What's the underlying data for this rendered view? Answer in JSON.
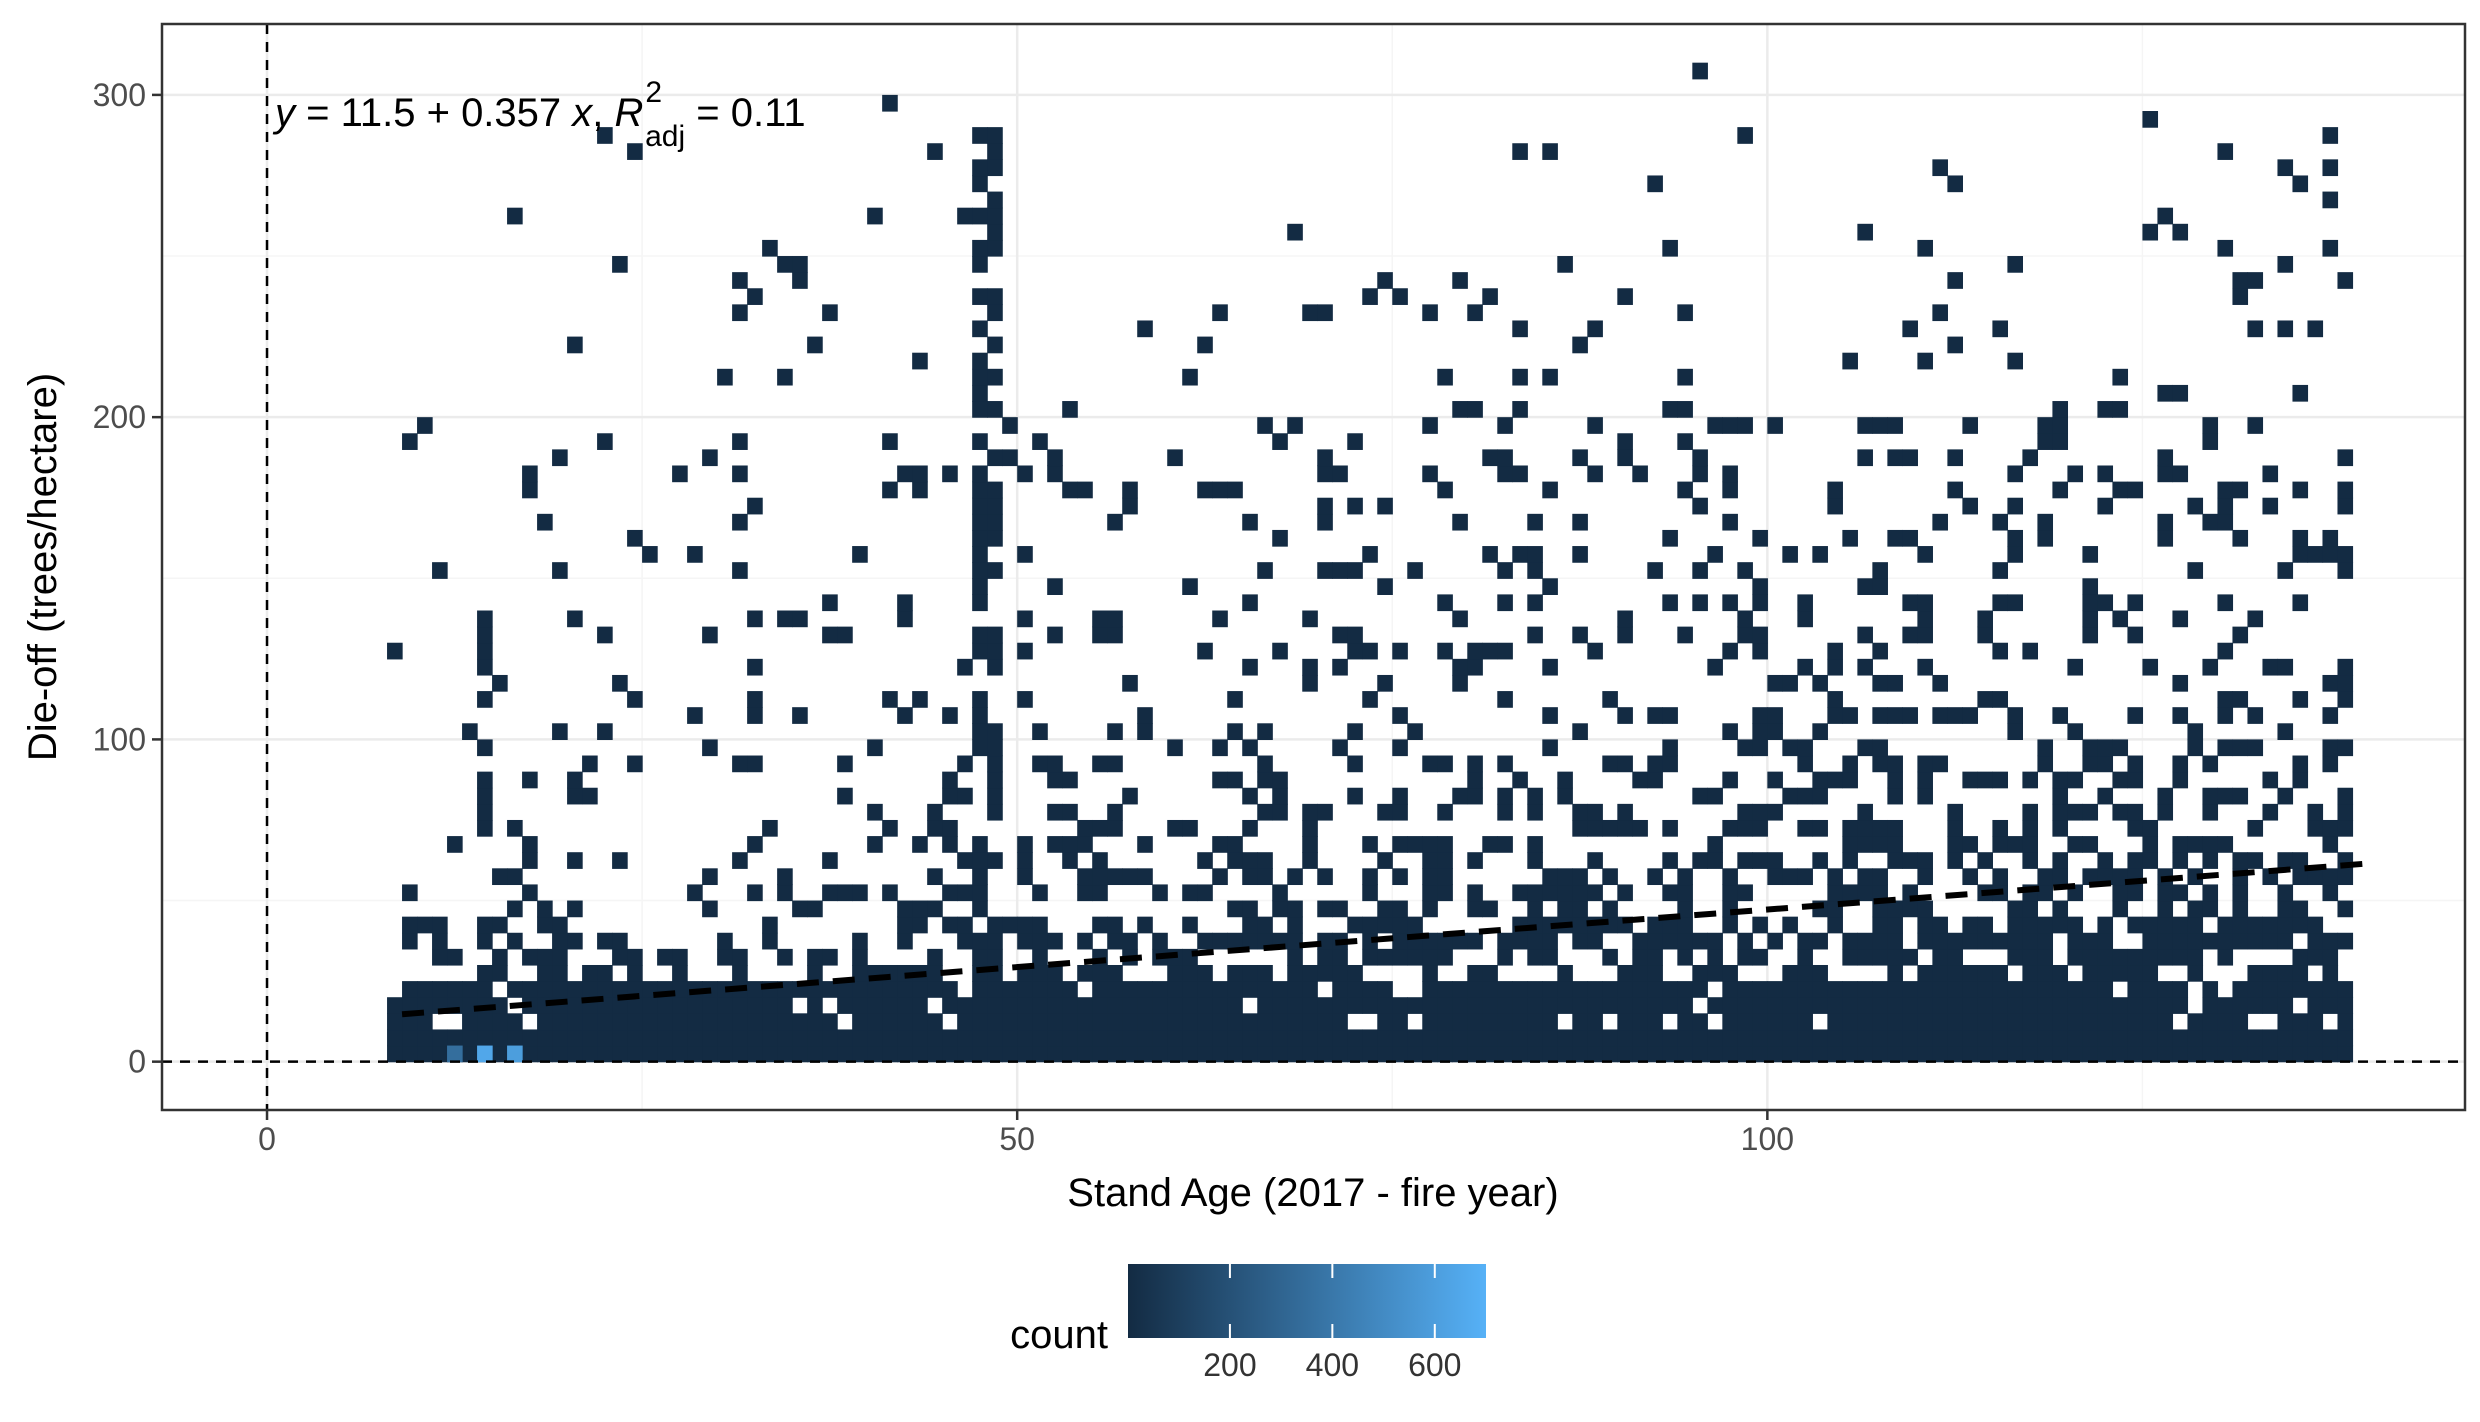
{
  "chart_data": {
    "type": "heatmap",
    "subtype": "2d-bin-count-with-linear-fit",
    "title": "",
    "xlabel": "Stand Age (2017 - fire year)",
    "ylabel": "Die-off (trees/hectare)",
    "xlim": [
      -7,
      146.5
    ],
    "ylim": [
      -15,
      322
    ],
    "x_ticks": [
      0,
      50,
      100
    ],
    "y_ticks": [
      0,
      100,
      200,
      300
    ],
    "x_tick_labels": [
      "0",
      "50",
      "100"
    ],
    "y_tick_labels": [
      "0",
      "100",
      "200",
      "300"
    ],
    "grid": true,
    "theme": "bw",
    "reference_lines": {
      "vertical_x": 0,
      "horizontal_y": 0,
      "style": "dashed"
    },
    "x_range_of_data": [
      8,
      138
    ],
    "bin_count_typical": 1,
    "hot_bins": [
      {
        "x": 14.5,
        "y": 2.5,
        "count": 650
      },
      {
        "x": 16.5,
        "y": 2.5,
        "count": 600
      },
      {
        "x": 12.5,
        "y": 2.5,
        "count": 350
      }
    ],
    "fit": {
      "intercept": 11.5,
      "slope": 0.357,
      "r2_adj": 0.11,
      "x_range": [
        9,
        140
      ],
      "equation_text": {
        "y": "y",
        "equals_intercept": " = 11.5",
        "plus": " + ",
        "slope": "0.357 ",
        "x": "x",
        "comma": ", ",
        "R": "R",
        "sup": "2",
        "sub": "adj",
        "equals_r2": " = 0.11"
      }
    },
    "legend": {
      "title": "count",
      "placement": "bottom",
      "range": [
        1,
        700
      ],
      "colors": [
        "#132B43",
        "#56B1F7"
      ],
      "ticks": [
        200,
        400,
        600
      ],
      "tick_labels": [
        "200",
        "400",
        "600"
      ]
    },
    "colors": {
      "panel_border": "#333333",
      "grid_major": "#ebebeb",
      "grid_minor": "#f5f5f5",
      "ref_line": "#000000",
      "fit_line": "#000000",
      "tile_low": "#132B43",
      "tile_high": "#56B1F7"
    }
  }
}
